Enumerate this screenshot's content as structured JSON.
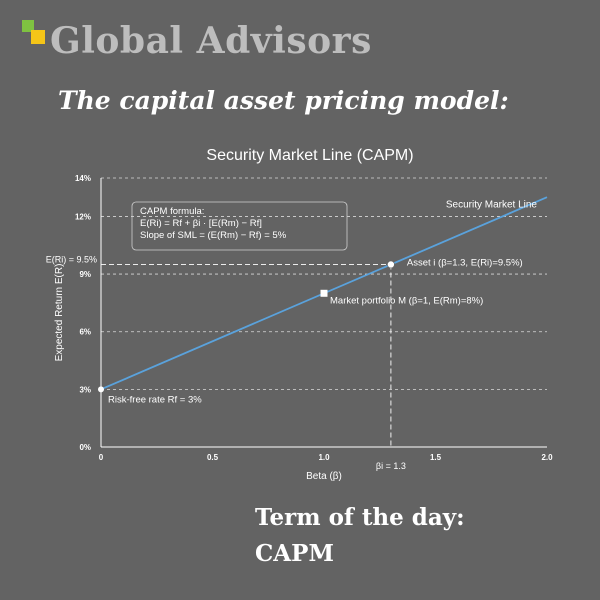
{
  "brand": {
    "name": "Global Advisors",
    "colors": {
      "green": "#7fc241",
      "yellow": "#f5c518",
      "text": "#bdbdbd"
    }
  },
  "subtitle": "The capital asset pricing model:",
  "term": {
    "line1": "Term of the day:",
    "line2": "CAPM"
  },
  "chart_data": {
    "type": "line",
    "title": "Security Market Line (CAPM)",
    "xlabel": "Beta (β)",
    "ylabel": "Expected Return E(R)",
    "xlim": [
      0,
      2.0
    ],
    "ylim": [
      0,
      14
    ],
    "x_ticks": [
      0,
      0.5,
      1.0,
      1.5,
      2.0
    ],
    "x_tick_labels": [
      "0",
      "0.5",
      "1.0",
      "1.5",
      "2.0"
    ],
    "y_ticks": [
      0,
      3,
      6,
      9,
      12,
      14
    ],
    "y_tick_labels": [
      "0%",
      "3%",
      "6%",
      "9%",
      "12%",
      "14%"
    ],
    "grid": "horizontal-dashed",
    "line_color": "#5aa2dc",
    "series": [
      {
        "name": "Security Market Line",
        "x": [
          0,
          2.0
        ],
        "y": [
          3,
          13
        ]
      }
    ],
    "points": [
      {
        "x": 0,
        "y": 3,
        "label": "Risk-free rate Rf = 3%",
        "marker": "circle"
      },
      {
        "x": 1.0,
        "y": 8,
        "label": "Market portfolio M (β=1, E(Rm)=8%)",
        "marker": "square"
      },
      {
        "x": 1.3,
        "y": 9.5,
        "label": "Asset i (β=1.3, E(Ri)=9.5%)",
        "marker": "circle"
      }
    ],
    "reference_lines": {
      "horizontal": {
        "y": 9.5,
        "label": "E(Ri) = 9.5%"
      },
      "vertical": {
        "x": 1.3,
        "label": "βi = 1.3"
      }
    },
    "formula_box": {
      "lines": [
        "CAPM formula:",
        "E(Ri) = Rf + βi · [E(Rm) − Rf]",
        "Slope of SML = (E(Rm) − Rf) = 5%"
      ]
    }
  }
}
